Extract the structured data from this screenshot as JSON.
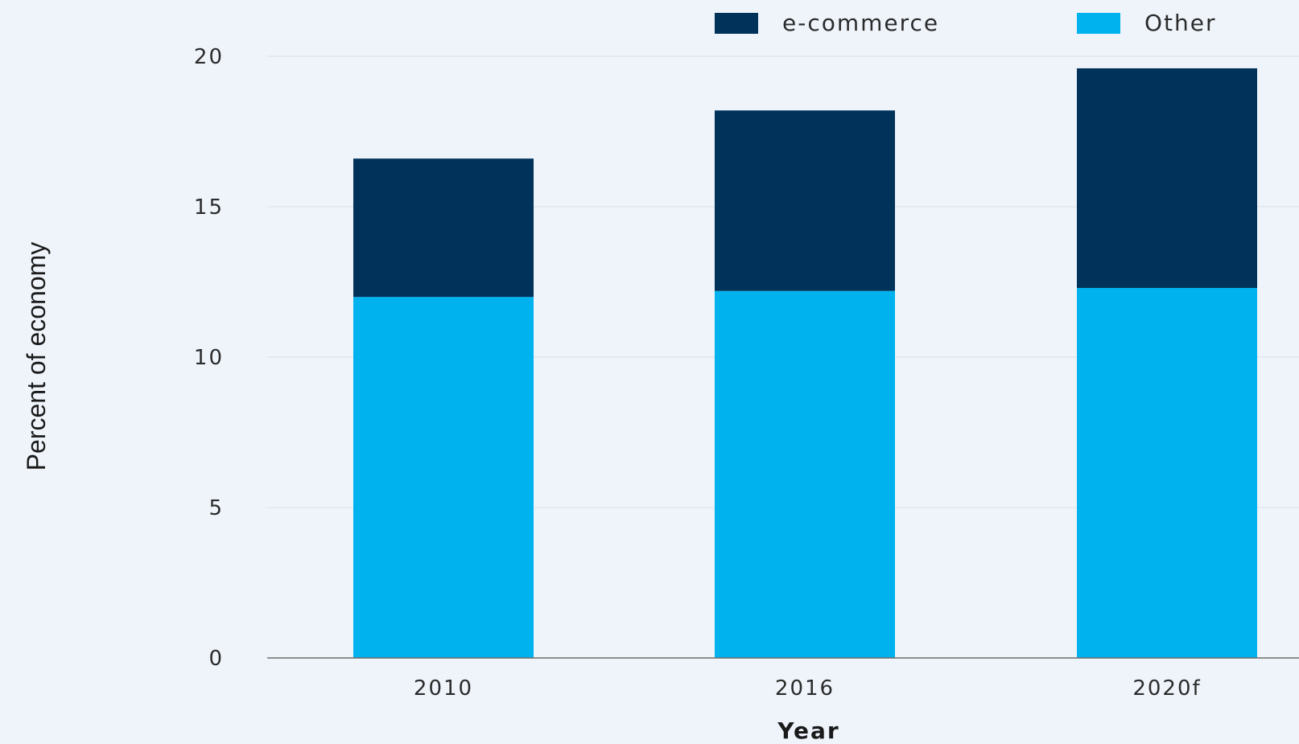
{
  "chart_data": {
    "type": "bar",
    "stacked": true,
    "categories": [
      "2010",
      "2016",
      "2020f"
    ],
    "series": [
      {
        "name": "Other",
        "values": [
          12.0,
          12.2,
          12.3
        ],
        "color": "#00b2ee"
      },
      {
        "name": "e-commerce",
        "values": [
          4.6,
          6.0,
          7.3
        ],
        "color": "#00325a"
      }
    ],
    "legend_order": [
      "e-commerce",
      "Other"
    ],
    "legend_position": "top-right",
    "xlabel": "Year",
    "ylabel": "Percent of economy",
    "ylim": [
      0,
      20
    ],
    "yticks": [
      0,
      5,
      10,
      15,
      20
    ],
    "grid": true
  }
}
